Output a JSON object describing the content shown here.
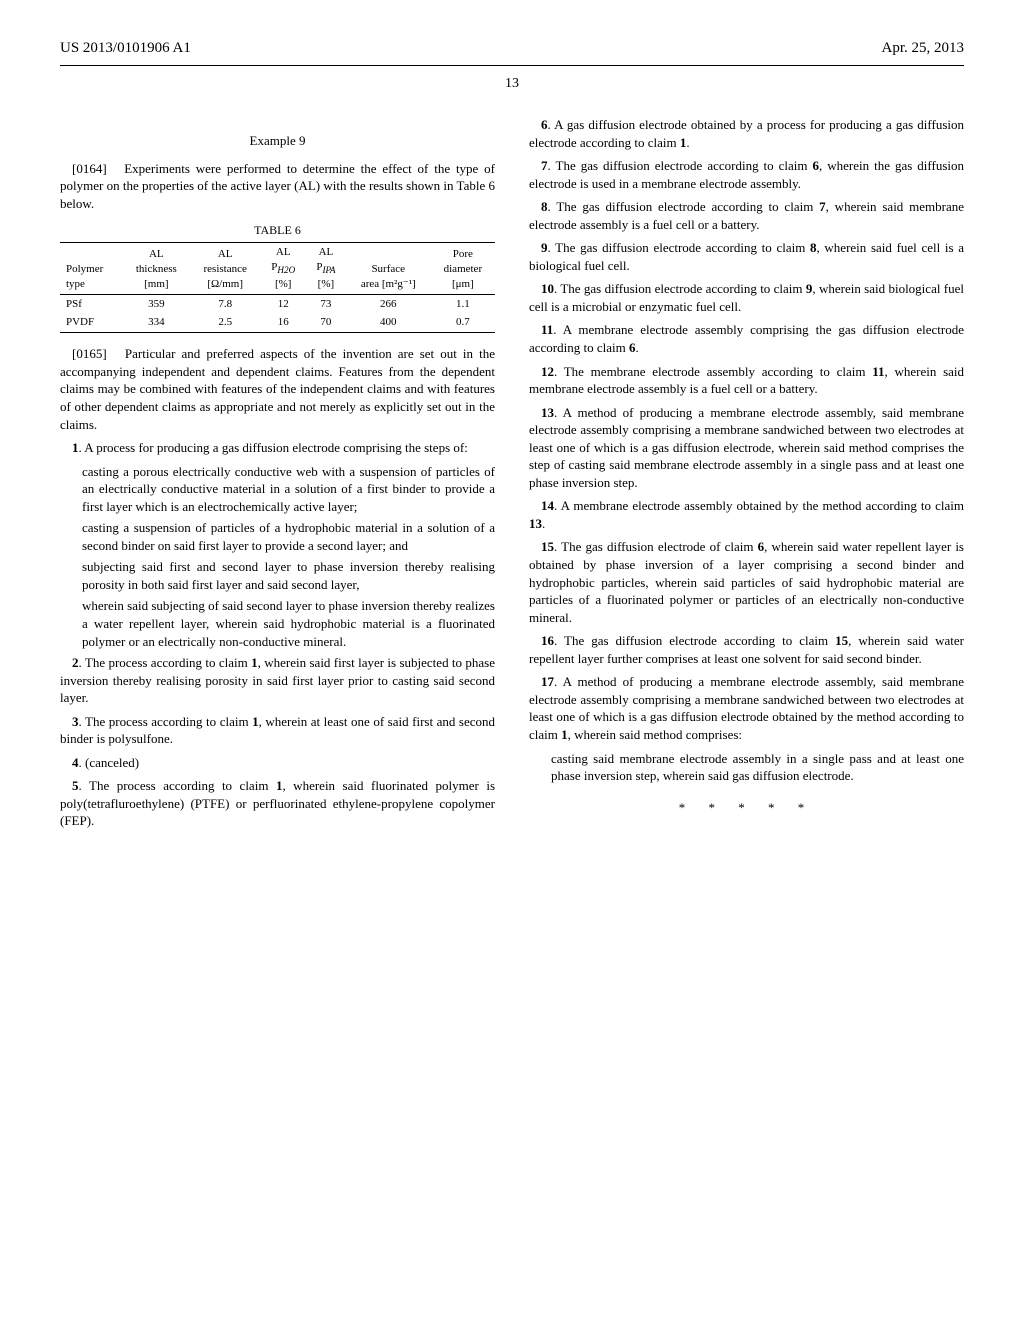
{
  "header": {
    "left": "US 2013/0101906 A1",
    "right": "Apr. 25, 2013",
    "page_number": "13"
  },
  "example": {
    "heading": "Example 9"
  },
  "paragraphs": {
    "p0164_num": "[0164]",
    "p0164": "Experiments were performed to determine the effect of the type of polymer on the properties of the active layer (AL) with the results shown in Table 6 below.",
    "p0165_num": "[0165]",
    "p0165": "Particular and preferred aspects of the invention are set out in the accompanying independent and dependent claims. Features from the dependent claims may be combined with features of the independent claims and with features of other dependent claims as appropriate and not merely as explicitly set out in the claims."
  },
  "table6": {
    "caption": "TABLE 6",
    "headers": {
      "c1a": "Polymer",
      "c1b": "type",
      "c2a": "AL",
      "c2b": "thickness",
      "c2c": "[mm]",
      "c3a": "AL",
      "c3b": "resistance",
      "c3c": "[Ω/mm]",
      "c4a": "AL",
      "c4b": "P",
      "c4b_sub": "H2O",
      "c4c": "[%]",
      "c5a": "AL",
      "c5b": "P",
      "c5b_sub": "IPA",
      "c5c": "[%]",
      "c6a": "Surface",
      "c6b": "area [m²g⁻¹]",
      "c7a": "Pore",
      "c7b": "diameter",
      "c7c": "[μm]"
    },
    "rows": [
      {
        "polymer": "PSf",
        "thickness": "359",
        "resistance": "7.8",
        "ph2o": "12",
        "pipa": "73",
        "surface": "266",
        "pore": "1.1"
      },
      {
        "polymer": "PVDF",
        "thickness": "334",
        "resistance": "2.5",
        "ph2o": "16",
        "pipa": "70",
        "surface": "400",
        "pore": "0.7"
      }
    ]
  },
  "claims_left": {
    "c1_num": "1",
    "c1_intro": ". A process for producing a gas diffusion electrode comprising the steps of:",
    "c1_s1": "casting a porous electrically conductive web with a suspension of particles of an electrically conductive material in a solution of a first binder to provide a first layer which is an electrochemically active layer;",
    "c1_s2": "casting a suspension of particles of a hydrophobic material in a solution of a second binder on said first layer to provide a second layer; and",
    "c1_s3": "subjecting said first and second layer to phase inversion thereby realising porosity in both said first layer and said second layer,",
    "c1_s4": "wherein said subjecting of said second layer to phase inversion thereby realizes a water repellent layer, wherein said hydrophobic material is a fluorinated polymer or an electrically non-conductive mineral.",
    "c2_num": "2",
    "c2": ". The process according to claim ",
    "c2_ref": "1",
    "c2_tail": ", wherein said first layer is subjected to phase inversion thereby realising porosity in said first layer prior to casting said second layer.",
    "c3_num": "3",
    "c3": ". The process according to claim ",
    "c3_ref": "1",
    "c3_tail": ", wherein at least one of said first and second binder is polysulfone.",
    "c4_num": "4",
    "c4": ". (canceled)",
    "c5_num": "5",
    "c5": ". The process according to claim ",
    "c5_ref": "1",
    "c5_tail": ", wherein said fluorinated polymer is poly(tetrafluroethylene) (PTFE) or perfluorinated ethylene-propylene copolymer (FEP)."
  },
  "claims_right": {
    "c6_num": "6",
    "c6": ". A gas diffusion electrode obtained by a process for producing a gas diffusion electrode according to claim ",
    "c6_ref": "1",
    "c6_tail": ".",
    "c7_num": "7",
    "c7": ". The gas diffusion electrode according to claim ",
    "c7_ref": "6",
    "c7_tail": ", wherein the gas diffusion electrode is used in a membrane electrode assembly.",
    "c8_num": "8",
    "c8": ". The gas diffusion electrode according to claim ",
    "c8_ref": "7",
    "c8_tail": ", wherein said membrane electrode assembly is a fuel cell or a battery.",
    "c9_num": "9",
    "c9": ". The gas diffusion electrode according to claim ",
    "c9_ref": "8",
    "c9_tail": ", wherein said fuel cell is a biological fuel cell.",
    "c10_num": "10",
    "c10": ". The gas diffusion electrode according to claim ",
    "c10_ref": "9",
    "c10_tail": ", wherein said biological fuel cell is a microbial or enzymatic fuel cell.",
    "c11_num": "11",
    "c11": ". A membrane electrode assembly comprising the gas diffusion electrode according to claim ",
    "c11_ref": "6",
    "c11_tail": ".",
    "c12_num": "12",
    "c12": ". The membrane electrode assembly according to claim ",
    "c12_ref": "11",
    "c12_tail": ", wherein said membrane electrode assembly is a fuel cell or a battery.",
    "c13_num": "13",
    "c13": ". A method of producing a membrane electrode assembly, said membrane electrode assembly comprising a membrane sandwiched between two electrodes at least one of which is a gas diffusion electrode, wherein said method comprises the step of casting said membrane electrode assembly in a single pass and at least one phase inversion step.",
    "c14_num": "14",
    "c14": ". A membrane electrode assembly obtained by the method according to claim ",
    "c14_ref": "13",
    "c14_tail": ".",
    "c15_num": "15",
    "c15": ". The gas diffusion electrode of claim ",
    "c15_ref": "6",
    "c15_tail": ", wherein said water repellent layer is obtained by phase inversion of a layer comprising a second binder and hydrophobic particles, wherein said particles of said hydrophobic material are particles of a fluorinated polymer or particles of an electrically non-conductive mineral.",
    "c16_num": "16",
    "c16": ". The gas diffusion electrode according to claim ",
    "c16_ref": "15",
    "c16_tail": ", wherein said water repellent layer further comprises at least one solvent for said second binder.",
    "c17_num": "17",
    "c17": ". A method of producing a membrane electrode assembly, said membrane electrode assembly comprising a membrane sandwiched between two electrodes at least one of which is a gas diffusion electrode obtained by the method according to claim ",
    "c17_ref": "1",
    "c17_tail": ", wherein said method comprises:",
    "c17_s1": "casting said membrane electrode assembly in a single pass and at least one phase inversion step, wherein said gas diffusion electrode."
  },
  "end_marks": "*   *   *   *   *"
}
